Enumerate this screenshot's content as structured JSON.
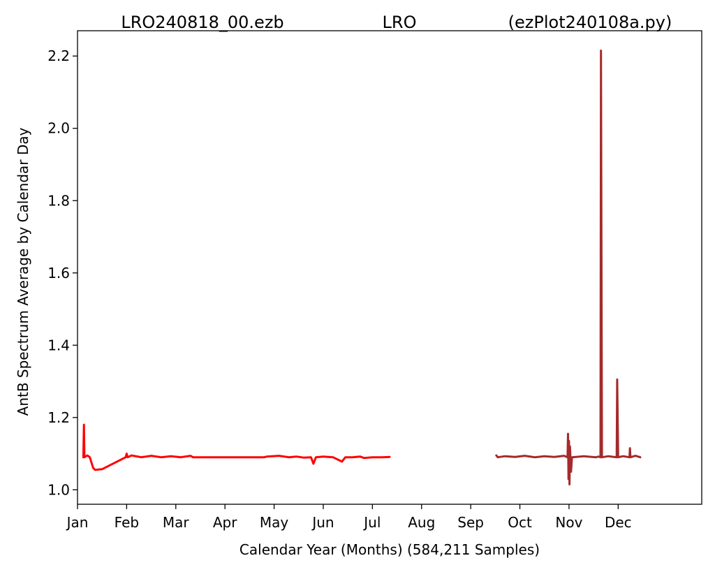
{
  "chart_data": {
    "type": "line",
    "title_left": "LRO240818_00.ezb",
    "title_center": "LRO",
    "title_right": "(ezPlot240108a.py)",
    "xlabel": "Calendar Year (Months) (584,211 Samples)",
    "ylabel": "AntB Spectrum Average by Calendar Day",
    "xlim": [
      0,
      12.7
    ],
    "ylim": [
      0.96,
      2.27
    ],
    "x_tick_positions": [
      0,
      1,
      2,
      3,
      4,
      5,
      6,
      7,
      8,
      9,
      10,
      11
    ],
    "x_tick_labels": [
      "Jan",
      "Feb",
      "Mar",
      "Apr",
      "May",
      "Jun",
      "Jul",
      "Aug",
      "Sep",
      "Oct",
      "Nov",
      "Dec"
    ],
    "y_tick_values": [
      1.0,
      1.2,
      1.4,
      1.6,
      1.8,
      2.0,
      2.2
    ],
    "y_tick_labels": [
      "1.0",
      "1.2",
      "1.4",
      "1.6",
      "1.8",
      "2.0",
      "2.2"
    ],
    "grid": false,
    "legend": "none",
    "series": [
      {
        "color": "#ff0000",
        "points": [
          [
            0.12,
            1.09
          ],
          [
            0.13,
            1.18
          ],
          [
            0.14,
            1.09
          ],
          [
            0.2,
            1.095
          ],
          [
            0.25,
            1.09
          ],
          [
            0.32,
            1.06
          ],
          [
            0.36,
            1.055
          ],
          [
            0.5,
            1.057
          ],
          [
            0.98,
            1.09
          ],
          [
            1.0,
            1.1
          ],
          [
            1.02,
            1.09
          ],
          [
            1.1,
            1.095
          ],
          [
            1.3,
            1.09
          ],
          [
            1.5,
            1.094
          ],
          [
            1.7,
            1.09
          ],
          [
            1.9,
            1.093
          ],
          [
            2.1,
            1.09
          ],
          [
            2.3,
            1.094
          ],
          [
            2.35,
            1.09
          ],
          [
            3.0,
            1.09
          ],
          [
            3.8,
            1.09
          ],
          [
            3.85,
            1.092
          ],
          [
            4.1,
            1.094
          ],
          [
            4.3,
            1.09
          ],
          [
            4.45,
            1.092
          ],
          [
            4.6,
            1.089
          ],
          [
            4.75,
            1.09
          ],
          [
            4.8,
            1.072
          ],
          [
            4.85,
            1.09
          ],
          [
            5.0,
            1.092
          ],
          [
            5.2,
            1.09
          ],
          [
            5.38,
            1.078
          ],
          [
            5.45,
            1.09
          ],
          [
            5.6,
            1.09
          ],
          [
            5.75,
            1.092
          ],
          [
            5.83,
            1.088
          ],
          [
            6.0,
            1.09
          ],
          [
            6.2,
            1.09
          ],
          [
            6.35,
            1.091
          ]
        ]
      },
      {
        "color": "#a52a2a",
        "points": [
          [
            8.52,
            1.095
          ],
          [
            8.55,
            1.09
          ],
          [
            8.7,
            1.093
          ],
          [
            8.9,
            1.091
          ],
          [
            9.1,
            1.094
          ],
          [
            9.3,
            1.09
          ],
          [
            9.5,
            1.093
          ],
          [
            9.7,
            1.091
          ],
          [
            9.9,
            1.094
          ],
          [
            9.97,
            1.09
          ],
          [
            9.98,
            1.155
          ],
          [
            9.99,
            1.03
          ],
          [
            10.0,
            1.135
          ],
          [
            10.01,
            1.015
          ],
          [
            10.02,
            1.12
          ],
          [
            10.04,
            1.05
          ],
          [
            10.06,
            1.09
          ],
          [
            10.3,
            1.093
          ],
          [
            10.55,
            1.09
          ],
          [
            10.6,
            1.092
          ],
          [
            10.64,
            1.09
          ],
          [
            10.65,
            2.215
          ],
          [
            10.67,
            1.09
          ],
          [
            10.8,
            1.093
          ],
          [
            10.97,
            1.09
          ],
          [
            10.98,
            1.305
          ],
          [
            11.0,
            1.09
          ],
          [
            11.1,
            1.093
          ],
          [
            11.23,
            1.09
          ],
          [
            11.24,
            1.115
          ],
          [
            11.25,
            1.09
          ],
          [
            11.35,
            1.094
          ],
          [
            11.45,
            1.09
          ]
        ]
      }
    ]
  }
}
